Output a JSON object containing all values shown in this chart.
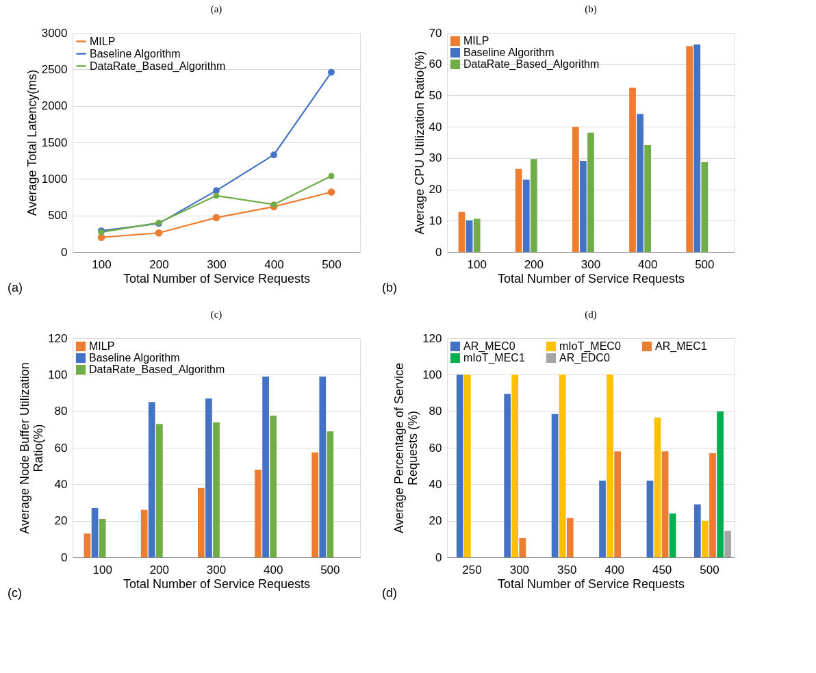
{
  "chart_data": [
    {
      "type": "line",
      "title": "(a)",
      "xlabel": "Total Number of Service Requests",
      "ylabel": "Average Total Latency(ms)",
      "categories": [
        "100",
        "200",
        "300",
        "400",
        "500"
      ],
      "series": [
        {
          "name": "MILP",
          "color": "#ed7d31",
          "values": [
            200,
            260,
            470,
            620,
            820
          ]
        },
        {
          "name": "Baseline Algorithm",
          "color": "#4472c4",
          "values": [
            290,
            390,
            840,
            1330,
            2460
          ]
        },
        {
          "name": "DataRate_Based_Algorithm",
          "color": "#70ad47",
          "values": [
            270,
            400,
            770,
            650,
            1040
          ]
        }
      ],
      "ylim": [
        0,
        3000
      ],
      "yticks": [
        0,
        500,
        1000,
        1500,
        2000,
        2500,
        3000
      ],
      "grid": "y",
      "legend": "top left",
      "marker": "circle",
      "line_style": "solid",
      "annotations": [
        "(a)"
      ]
    },
    {
      "type": "bar",
      "title": "(b)",
      "xlabel": "Total Number of Service Requests",
      "ylabel": "Average CPU Utilization Ratio(%)",
      "categories": [
        "100",
        "200",
        "300",
        "400",
        "500"
      ],
      "series": [
        {
          "name": "MILP",
          "color": "#ed7d31",
          "values": [
            12.8,
            26.5,
            40,
            52.5,
            65.8
          ]
        },
        {
          "name": "Baseline Algorithm",
          "color": "#4472c4",
          "values": [
            10.1,
            23.1,
            29.1,
            44.1,
            66.3
          ]
        },
        {
          "name": "DataRate_Based_Algorithm",
          "color": "#70ad47",
          "values": [
            10.6,
            29.7,
            38.1,
            34.1,
            28.7
          ]
        }
      ],
      "ylim": [
        0,
        70
      ],
      "yticks": [
        0,
        10,
        20,
        30,
        40,
        50,
        60,
        70
      ],
      "grid": "y",
      "legend": "top left",
      "annotations": [
        "(b)"
      ]
    },
    {
      "type": "bar",
      "title": "(c)",
      "xlabel": "Total Number of Service Requests",
      "ylabel": "Average Node Buffer Utilization Ratio(%)",
      "categories": [
        "100",
        "200",
        "300",
        "400",
        "500"
      ],
      "series": [
        {
          "name": "MILP",
          "color": "#ed7d31",
          "values": [
            13,
            26,
            38,
            48,
            57.5
          ]
        },
        {
          "name": "Baseline Algorithm",
          "color": "#4472c4",
          "values": [
            27,
            85,
            87,
            99,
            99
          ]
        },
        {
          "name": "DataRate_Based_Algorithm",
          "color": "#70ad47",
          "values": [
            21,
            73,
            74,
            77.5,
            69
          ]
        }
      ],
      "ylim": [
        0,
        120
      ],
      "yticks": [
        0,
        20,
        40,
        60,
        80,
        100,
        120
      ],
      "grid": "y",
      "legend": "top left",
      "annotations": [
        "(c)"
      ]
    },
    {
      "type": "bar",
      "title": "(d)",
      "xlabel": "Total Number of Service Requests",
      "ylabel": "Average Percentage of Service Requests (%)",
      "categories": [
        "250",
        "300",
        "350",
        "400",
        "450",
        "500"
      ],
      "series": [
        {
          "name": "AR_MEC0",
          "color": "#4472c4",
          "values": [
            100,
            89.5,
            78.5,
            42,
            42,
            29
          ]
        },
        {
          "name": "mIoT_MEC0",
          "color": "#ffc000",
          "values": [
            100,
            100,
            100,
            100,
            76.5,
            20
          ]
        },
        {
          "name": "AR_MEC1",
          "color": "#ed7d31",
          "values": [
            null,
            10.5,
            21.5,
            58,
            58,
            57
          ]
        },
        {
          "name": "mIoT_MEC1",
          "color": "#00b050",
          "values": [
            null,
            null,
            null,
            null,
            24,
            80
          ]
        },
        {
          "name": "AR_EDC0",
          "color": "#a5a5a5",
          "values": [
            null,
            null,
            null,
            null,
            null,
            14.5
          ]
        }
      ],
      "ylim": [
        0,
        120
      ],
      "yticks": [
        0,
        20,
        40,
        60,
        80,
        100,
        120
      ],
      "grid": "y",
      "legend": "top left",
      "annotations": [
        "(d)"
      ]
    }
  ]
}
